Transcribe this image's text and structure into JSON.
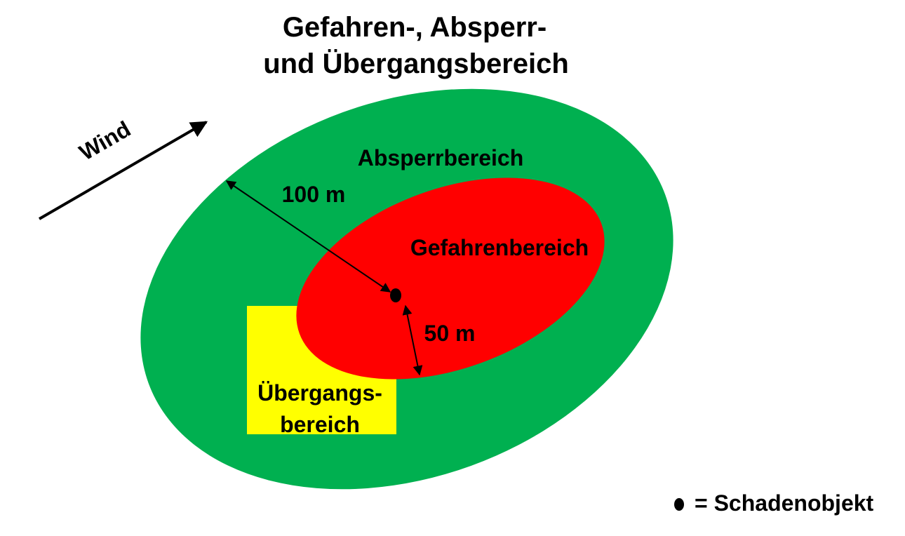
{
  "title": {
    "line1": "Gefahren-, Absperr-",
    "line2": "und Übergangsbereich"
  },
  "wind": {
    "label": "Wind"
  },
  "zones": {
    "absperr": {
      "label": "Absperrbereich",
      "color": "#00b050"
    },
    "gefahren": {
      "label": "Gefahrenbereich",
      "color": "#ff0000"
    },
    "uebergang": {
      "label_line1": "Übergangs-",
      "label_line2": "bereich",
      "color": "#ffff00"
    }
  },
  "distances": {
    "outer": "100 m",
    "inner": "50 m"
  },
  "legend": {
    "text": "= Schadenobjekt"
  }
}
